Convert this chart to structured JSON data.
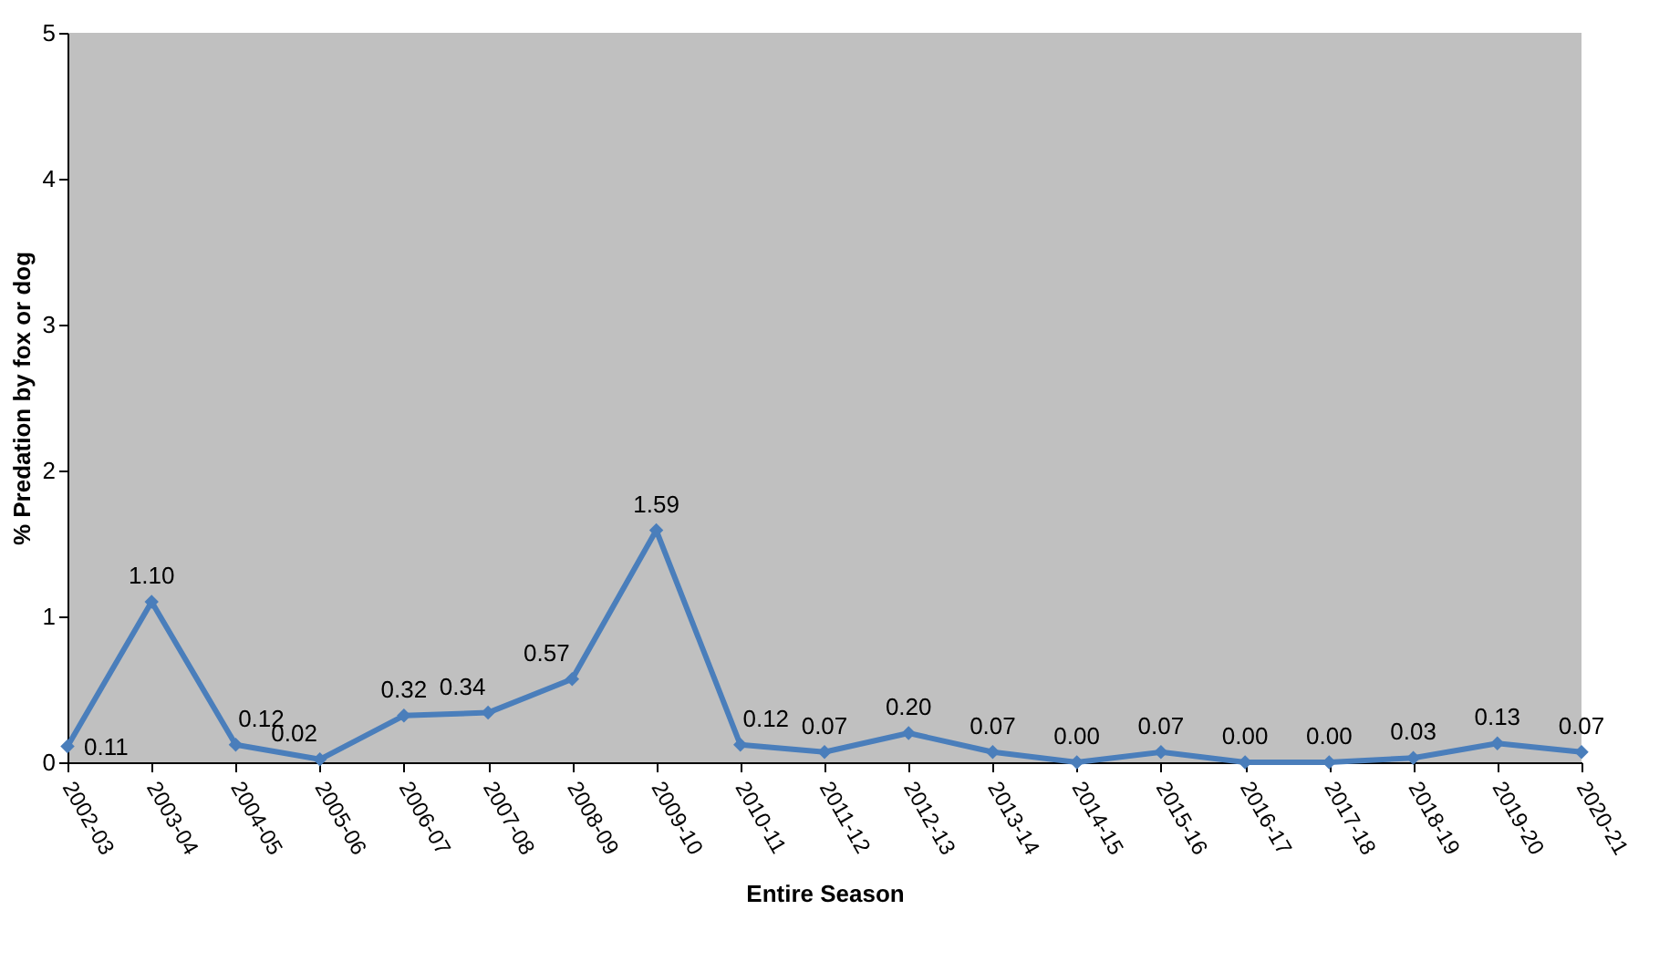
{
  "chart_data": {
    "type": "line",
    "xlabel": "Entire Season",
    "ylabel": "% Predation by fox or dog",
    "categories": [
      "2002-03",
      "2003-04",
      "2004-05",
      "2005-06",
      "2006-07",
      "2007-08",
      "2008-09",
      "2009-10",
      "2010-11",
      "2011-12",
      "2012-13",
      "2013-14",
      "2014-15",
      "2015-16",
      "2016-17",
      "2017-18",
      "2018-19",
      "2019-20",
      "2020-21"
    ],
    "series": [
      {
        "color": "#4a7ebb",
        "values": [
          0.11,
          1.1,
          0.12,
          0.02,
          0.32,
          0.34,
          0.57,
          1.59,
          0.12,
          0.07,
          0.2,
          0.07,
          0.0,
          0.07,
          0.0,
          0.0,
          0.03,
          0.13,
          0.07
        ],
        "value_labels": [
          "0.11",
          "1.10",
          "0.12",
          "0.02",
          "0.32",
          "0.34",
          "0.57",
          "1.59",
          "0.12",
          "0.07",
          "0.20",
          "0.07",
          "0.00",
          "0.07",
          "0.00",
          "0.00",
          "0.03",
          "0.13",
          "0.07"
        ]
      }
    ],
    "ylim": [
      0,
      5
    ],
    "yticks": [
      0,
      1,
      2,
      3,
      4,
      5
    ],
    "grid": false,
    "marker": "diamond",
    "line_style": "solid"
  }
}
